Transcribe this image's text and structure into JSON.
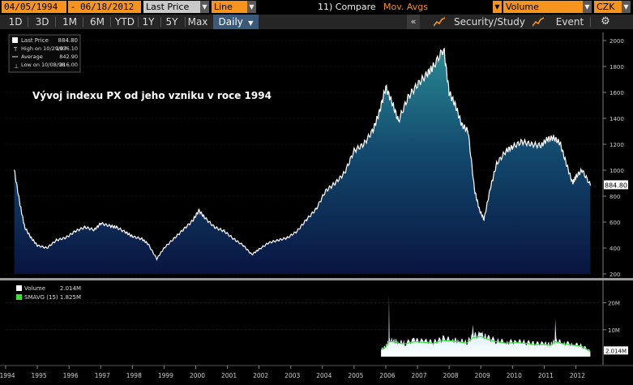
{
  "toolbar": {
    "start_date": "04/05/1994",
    "end_date": "06/18/2012",
    "price_field": "Last Price",
    "chart_style": "Line",
    "compare": "11) Compare",
    "mov_avgs": "Mov. Avgs",
    "volume_select": "Volume",
    "currency": "CZK"
  },
  "tabs": {
    "items": [
      "1D",
      "3D",
      "1M",
      "6M",
      "YTD",
      "1Y",
      "5Y",
      "Max",
      "Daily"
    ],
    "security_study": "Security/Study",
    "event": "Event",
    "collapse_icon": "double-chevron-left-icon",
    "settings_icon": "gear-icon"
  },
  "colors": {
    "accent": "#f7941d",
    "price_fill_top": "#1f7a8c",
    "price_fill_bottom": "#0b1a4a",
    "volume_line": "#38e038",
    "price_line": "#ffffff"
  },
  "legend": {
    "last_price_label": "Last Price",
    "last_price_value": "884.80",
    "high_label": "High on 10/29/07",
    "high_value": "1936.10",
    "average_label": "Average",
    "average_value": "842.90",
    "low_label": "Low on 10/08/98",
    "low_value": "316.00"
  },
  "volume_legend": {
    "volume_label": "Volume",
    "volume_value": "2.014M",
    "smavg_label": "SMAVG (15)",
    "smavg_value": "1.825M"
  },
  "chart_data": {
    "type": "area",
    "annotation": "Vývoj indexu PX od jeho vzniku v roce 1994",
    "x": [
      1994.27,
      1994.45,
      1994.6,
      1994.8,
      1995.0,
      1995.3,
      1995.6,
      1995.9,
      1996.2,
      1996.5,
      1996.8,
      1997.0,
      1997.3,
      1997.5,
      1997.8,
      1998.0,
      1998.3,
      1998.5,
      1998.77,
      1999.0,
      1999.3,
      1999.6,
      1999.9,
      2000.1,
      2000.3,
      2000.6,
      2000.9,
      2001.2,
      2001.5,
      2001.77,
      2002.0,
      2002.3,
      2002.6,
      2002.9,
      2003.2,
      2003.5,
      2003.8,
      2004.1,
      2004.4,
      2004.7,
      2005.0,
      2005.3,
      2005.6,
      2005.8,
      2006.0,
      2006.2,
      2006.4,
      2006.7,
      2007.0,
      2007.3,
      2007.5,
      2007.83,
      2008.0,
      2008.2,
      2008.4,
      2008.6,
      2008.8,
      2008.95,
      2009.1,
      2009.3,
      2009.5,
      2009.8,
      2010.0,
      2010.3,
      2010.6,
      2010.9,
      2011.1,
      2011.3,
      2011.5,
      2011.7,
      2011.9,
      2012.0,
      2012.2,
      2012.46
    ],
    "y": [
      1000,
      740,
      560,
      480,
      420,
      400,
      460,
      480,
      530,
      560,
      540,
      590,
      570,
      560,
      520,
      490,
      470,
      430,
      316,
      400,
      470,
      540,
      610,
      690,
      630,
      560,
      530,
      470,
      420,
      350,
      390,
      440,
      460,
      480,
      530,
      620,
      700,
      840,
      900,
      980,
      1150,
      1200,
      1310,
      1450,
      1640,
      1520,
      1380,
      1560,
      1660,
      1740,
      1800,
      1936,
      1600,
      1500,
      1350,
      1300,
      850,
      700,
      620,
      860,
      1050,
      1150,
      1180,
      1220,
      1200,
      1190,
      1240,
      1250,
      1210,
      1050,
      900,
      950,
      1000,
      884.8
    ],
    "ylim": [
      200,
      2000
    ],
    "yticks": [
      200,
      400,
      600,
      800,
      1000,
      1200,
      1400,
      1600,
      1800,
      2000
    ],
    "xticks": [
      "1994",
      "1995",
      "1996",
      "1997",
      "1998",
      "1999",
      "2000",
      "2001",
      "2002",
      "2003",
      "2004",
      "2005",
      "2006",
      "2007",
      "2008",
      "2009",
      "2010",
      "2011",
      "2012"
    ],
    "last_value_label": "884.80",
    "volume": {
      "x": [
        2005.85,
        2006.0,
        2006.1,
        2006.25,
        2006.4,
        2006.6,
        2006.9,
        2007.2,
        2007.5,
        2007.8,
        2008.1,
        2008.3,
        2008.55,
        2008.75,
        2009.0,
        2009.2,
        2009.5,
        2009.8,
        2010.1,
        2010.4,
        2010.7,
        2011.0,
        2011.2,
        2011.35,
        2011.6,
        2011.9,
        2012.2,
        2012.46
      ],
      "y": [
        2.5,
        4.0,
        23.0,
        6.5,
        5.0,
        4.0,
        7.0,
        5.5,
        4.5,
        8.0,
        6.0,
        5.5,
        4.5,
        12.0,
        9.0,
        7.0,
        5.0,
        4.5,
        6.0,
        5.0,
        4.0,
        4.5,
        4.0,
        14.0,
        4.5,
        4.0,
        3.5,
        2.0
      ],
      "smavg": [
        2.5,
        3.5,
        5.5,
        5.5,
        5.0,
        4.8,
        5.5,
        5.3,
        5.0,
        6.0,
        5.8,
        5.5,
        5.0,
        7.0,
        7.5,
        6.5,
        5.5,
        5.0,
        5.2,
        5.0,
        4.5,
        4.5,
        4.2,
        5.5,
        4.8,
        4.3,
        3.8,
        1.825
      ],
      "ylim": [
        0,
        25
      ],
      "yticks": [
        "20M",
        "10M"
      ],
      "ytick_values": [
        20,
        10
      ],
      "last_value_label": "2.014M"
    }
  }
}
